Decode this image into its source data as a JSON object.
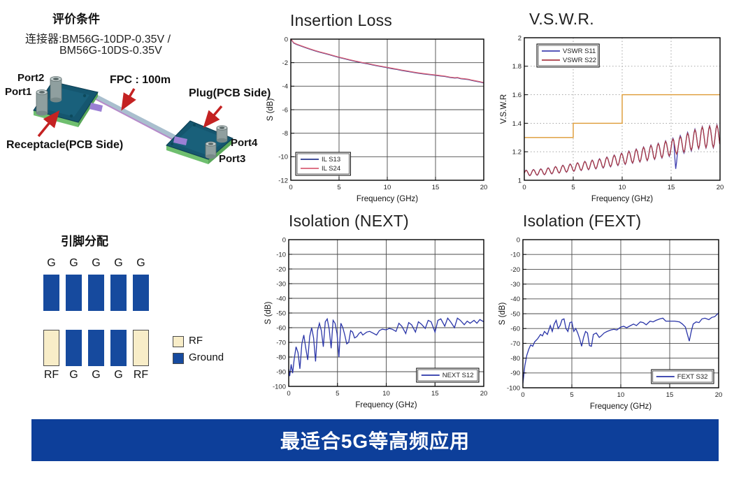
{
  "page": {
    "banner": {
      "text": "最适合5G等高频应用",
      "bg_color": "#0d3f9a",
      "text_color": "#ffffff"
    }
  },
  "evaluation": {
    "title": "评价条件",
    "connector_line1": "连接器:BM56G-10DP-0.35V /",
    "connector_line2": "BM56G-10DS-0.35V"
  },
  "diagram": {
    "labels": {
      "port1": "Port1",
      "port2": "Port2",
      "port3": "Port3",
      "port4": "Port4",
      "fpc": "FPC : 100m",
      "plug": "Plug(PCB Side)",
      "receptacle": "Receptacle(PCB Side)"
    }
  },
  "pin_assignment": {
    "title": "引脚分配",
    "top_row": [
      "G",
      "G",
      "G",
      "G",
      "G"
    ],
    "bottom_row": [
      "RF",
      "G",
      "G",
      "G",
      "RF"
    ],
    "pin_colors": {
      "G": "#164a9e",
      "RF": "#f8edc8"
    },
    "legend": [
      {
        "label": "RF",
        "color": "#f8edc8"
      },
      {
        "label": "Ground",
        "color": "#164a9e"
      }
    ]
  },
  "chart_data": [
    {
      "id": "insertion_loss",
      "type": "line",
      "title": "Insertion Loss",
      "xlabel": "Frequency (GHz)",
      "ylabel": "S (dB)",
      "xlim": [
        0,
        20
      ],
      "ylim": [
        -12,
        0
      ],
      "xticks": [
        0,
        5,
        10,
        15,
        20
      ],
      "yticks": [
        0,
        -2,
        -4,
        -6,
        -8,
        -10,
        -12
      ],
      "grid": "solid",
      "legend": {
        "position": "bottom-left",
        "entries": [
          {
            "label": "IL S13",
            "color": "#26348c"
          },
          {
            "label": "IL S24",
            "color": "#da5f76"
          }
        ]
      },
      "series": [
        {
          "name": "IL S13",
          "color": "#26348c",
          "points": [
            [
              0,
              0
            ],
            [
              0.3,
              -0.33
            ],
            [
              0.6,
              -0.45
            ],
            [
              1,
              -0.57
            ],
            [
              1.5,
              -0.72
            ],
            [
              2,
              -0.86
            ],
            [
              2.5,
              -1.0
            ],
            [
              3,
              -1.11
            ],
            [
              3.5,
              -1.22
            ],
            [
              4,
              -1.33
            ],
            [
              4.5,
              -1.45
            ],
            [
              5,
              -1.56
            ],
            [
              5.5,
              -1.66
            ],
            [
              6,
              -1.76
            ],
            [
              6.5,
              -1.86
            ],
            [
              7,
              -1.95
            ],
            [
              7.5,
              -2.03
            ],
            [
              8,
              -2.11
            ],
            [
              8.5,
              -2.2
            ],
            [
              9,
              -2.28
            ],
            [
              9.5,
              -2.35
            ],
            [
              10,
              -2.43
            ],
            [
              10.5,
              -2.51
            ],
            [
              11,
              -2.58
            ],
            [
              11.5,
              -2.66
            ],
            [
              12,
              -2.73
            ],
            [
              12.5,
              -2.8
            ],
            [
              13,
              -2.87
            ],
            [
              13.5,
              -2.93
            ],
            [
              14,
              -2.98
            ],
            [
              14.5,
              -3.03
            ],
            [
              15,
              -3.08
            ],
            [
              15.5,
              -3.13
            ],
            [
              16,
              -3.18
            ],
            [
              16.5,
              -3.26
            ],
            [
              17,
              -3.31
            ],
            [
              17.3,
              -3.29
            ],
            [
              17.6,
              -3.36
            ],
            [
              18,
              -3.4
            ],
            [
              18.4,
              -3.44
            ],
            [
              18.8,
              -3.52
            ],
            [
              19.2,
              -3.58
            ],
            [
              19.6,
              -3.65
            ],
            [
              20,
              -3.73
            ]
          ]
        },
        {
          "name": "IL S24",
          "color": "#da5f76",
          "same_as": 0,
          "dy": 0.03
        }
      ]
    },
    {
      "id": "vswr",
      "type": "line",
      "title": "V.S.W.R.",
      "xlabel": "Frequency (GHz)",
      "ylabel": "V.S.W.R",
      "xlim": [
        0,
        20
      ],
      "ylim": [
        1,
        2
      ],
      "xticks": [
        0,
        5,
        10,
        15,
        20
      ],
      "yticks": [
        1,
        1.2,
        1.4,
        1.6,
        1.8,
        2
      ],
      "grid": "dotted",
      "legend": {
        "position": "top-left",
        "entries": [
          {
            "label": "VSWR S11",
            "color": "#4040b0"
          },
          {
            "label": "VSWR S22",
            "color": "#a93a45"
          }
        ]
      },
      "reference_line": {
        "name": "spec-limit-step",
        "color": "#dd9933",
        "step_points": [
          [
            0,
            1.3
          ],
          [
            5,
            1.3
          ],
          [
            5,
            1.4
          ],
          [
            10,
            1.4
          ],
          [
            10,
            1.6
          ],
          [
            20,
            1.6
          ]
        ]
      },
      "series": [
        {
          "name": "VSWR S11",
          "color": "#4040b0",
          "osc": {
            "period": 0.75,
            "env_x": [
              0,
              2,
              4,
              6,
              8,
              10,
              12,
              14,
              16,
              18,
              20
            ],
            "env_mid": [
              1.05,
              1.06,
              1.08,
              1.1,
              1.12,
              1.15,
              1.18,
              1.21,
              1.25,
              1.3,
              1.31
            ],
            "env_amp": [
              0.02,
              0.022,
              0.026,
              0.03,
              0.035,
              0.042,
              0.05,
              0.055,
              0.065,
              0.075,
              0.08
            ]
          },
          "notch": [
            15.5,
            1.08
          ]
        },
        {
          "name": "VSWR S22",
          "color": "#a93a45",
          "osc": {
            "period": 0.75,
            "env_x": [
              0,
              2,
              4,
              6,
              8,
              10,
              12,
              14,
              16,
              18,
              20
            ],
            "env_mid": [
              1.05,
              1.06,
              1.08,
              1.1,
              1.12,
              1.15,
              1.18,
              1.21,
              1.25,
              1.3,
              1.31
            ],
            "env_amp": [
              0.019,
              0.021,
              0.025,
              0.029,
              0.033,
              0.04,
              0.048,
              0.053,
              0.058,
              0.072,
              0.077
            ]
          }
        }
      ]
    },
    {
      "id": "isolation_next",
      "type": "line",
      "title": "Isolation (NEXT)",
      "xlabel": "Frequency (GHz)",
      "ylabel": "S (dB)",
      "xlim": [
        0,
        20
      ],
      "ylim": [
        -100,
        0
      ],
      "xticks": [
        0,
        5,
        10,
        15,
        20
      ],
      "yticks": [
        0,
        -10,
        -20,
        -30,
        -40,
        -50,
        -60,
        -70,
        -80,
        -90,
        -100
      ],
      "grid": "solid",
      "legend": {
        "position": "bottom-right",
        "entries": [
          {
            "label": "NEXT S12",
            "color": "#2a35a8"
          }
        ]
      },
      "series": [
        {
          "name": "NEXT S12",
          "color": "#2a35a8",
          "points": [
            [
              0,
              -88
            ],
            [
              0.1,
              -93
            ],
            [
              0.25,
              -85
            ],
            [
              0.4,
              -91
            ],
            [
              0.55,
              -82
            ],
            [
              0.75,
              -73
            ],
            [
              0.95,
              -77
            ],
            [
              1.15,
              -88
            ],
            [
              1.35,
              -71
            ],
            [
              1.55,
              -65
            ],
            [
              1.75,
              -74
            ],
            [
              1.95,
              -82
            ],
            [
              2.15,
              -66
            ],
            [
              2.35,
              -60
            ],
            [
              2.55,
              -67
            ],
            [
              2.75,
              -83
            ],
            [
              2.95,
              -62
            ],
            [
              3.15,
              -57
            ],
            [
              3.35,
              -62
            ],
            [
              3.55,
              -73
            ],
            [
              3.75,
              -56
            ],
            [
              3.95,
              -54
            ],
            [
              4.15,
              -61
            ],
            [
              4.35,
              -74
            ],
            [
              4.55,
              -55
            ],
            [
              4.75,
              -57
            ],
            [
              4.95,
              -64
            ],
            [
              5.15,
              -80
            ],
            [
              5.35,
              -57
            ],
            [
              5.55,
              -60
            ],
            [
              5.75,
              -65
            ],
            [
              5.95,
              -71
            ],
            [
              6.15,
              -70
            ],
            [
              6.35,
              -62
            ],
            [
              6.55,
              -63
            ],
            [
              6.75,
              -67
            ],
            [
              7,
              -66
            ],
            [
              7.2,
              -64
            ],
            [
              7.4,
              -63
            ],
            [
              7.6,
              -65
            ],
            [
              7.8,
              -64
            ],
            [
              8,
              -63
            ],
            [
              8.3,
              -62.5
            ],
            [
              8.6,
              -63.5
            ],
            [
              9,
              -65
            ],
            [
              9.3,
              -62
            ],
            [
              9.6,
              -61
            ],
            [
              10,
              -61.5
            ],
            [
              10.3,
              -60.5
            ],
            [
              10.6,
              -61
            ],
            [
              11,
              -62.5
            ],
            [
              11.3,
              -57
            ],
            [
              11.6,
              -59
            ],
            [
              12,
              -64
            ],
            [
              12.3,
              -56.5
            ],
            [
              12.6,
              -58
            ],
            [
              13,
              -63
            ],
            [
              13.3,
              -56
            ],
            [
              13.6,
              -57.5
            ],
            [
              14,
              -60.5
            ],
            [
              14.3,
              -55
            ],
            [
              14.6,
              -56
            ],
            [
              15,
              -63
            ],
            [
              15.3,
              -55
            ],
            [
              15.6,
              -54
            ],
            [
              16,
              -59
            ],
            [
              16.3,
              -53.5
            ],
            [
              16.6,
              -56
            ],
            [
              17,
              -60
            ],
            [
              17.3,
              -53.5
            ],
            [
              17.6,
              -55
            ],
            [
              18,
              -58
            ],
            [
              18.3,
              -55.5
            ],
            [
              18.6,
              -57
            ],
            [
              19,
              -55
            ],
            [
              19.3,
              -57
            ],
            [
              19.6,
              -54.5
            ],
            [
              20,
              -56
            ]
          ]
        }
      ]
    },
    {
      "id": "isolation_fext",
      "type": "line",
      "title": "Isolation (FEXT)",
      "xlabel": "Frequency (GHz)",
      "ylabel": "S (dB)",
      "xlim": [
        0,
        20
      ],
      "ylim": [
        -100,
        0
      ],
      "xticks": [
        0,
        5,
        10,
        15,
        20
      ],
      "yticks": [
        0,
        -10,
        -20,
        -30,
        -40,
        -50,
        -60,
        -70,
        -80,
        -90,
        -100
      ],
      "grid": "solid",
      "legend": {
        "position": "bottom-right",
        "entries": [
          {
            "label": "FEXT S32",
            "color": "#2a35a8"
          }
        ]
      },
      "series": [
        {
          "name": "FEXT S32",
          "color": "#2a35a8",
          "points": [
            [
              0,
              -97
            ],
            [
              0.2,
              -85
            ],
            [
              0.4,
              -78
            ],
            [
              0.6,
              -74
            ],
            [
              0.8,
              -71
            ],
            [
              1.0,
              -72
            ],
            [
              1.2,
              -69
            ],
            [
              1.5,
              -67
            ],
            [
              1.8,
              -64
            ],
            [
              2.0,
              -65
            ],
            [
              2.2,
              -62
            ],
            [
              2.5,
              -64
            ],
            [
              2.8,
              -58
            ],
            [
              3.0,
              -62
            ],
            [
              3.2,
              -57
            ],
            [
              3.4,
              -54.5
            ],
            [
              3.6,
              -60
            ],
            [
              3.8,
              -58
            ],
            [
              4.0,
              -54
            ],
            [
              4.2,
              -53.5
            ],
            [
              4.4,
              -60
            ],
            [
              4.6,
              -62
            ],
            [
              4.8,
              -56
            ],
            [
              5.0,
              -55.5
            ],
            [
              5.2,
              -62
            ],
            [
              5.4,
              -60
            ],
            [
              5.6,
              -63
            ],
            [
              5.8,
              -67
            ],
            [
              6.0,
              -72
            ],
            [
              6.2,
              -66
            ],
            [
              6.4,
              -62
            ],
            [
              6.6,
              -63
            ],
            [
              6.8,
              -71.5
            ],
            [
              7.0,
              -72
            ],
            [
              7.2,
              -64
            ],
            [
              7.5,
              -63
            ],
            [
              7.8,
              -66
            ],
            [
              8.0,
              -65
            ],
            [
              8.3,
              -63
            ],
            [
              8.6,
              -62
            ],
            [
              9.0,
              -61
            ],
            [
              9.3,
              -60.5
            ],
            [
              9.6,
              -61
            ],
            [
              10.0,
              -59
            ],
            [
              10.3,
              -58.5
            ],
            [
              10.6,
              -59.5
            ],
            [
              11.0,
              -58
            ],
            [
              11.3,
              -57
            ],
            [
              11.6,
              -58
            ],
            [
              12.0,
              -55.5
            ],
            [
              12.3,
              -56
            ],
            [
              12.6,
              -57.5
            ],
            [
              13.0,
              -55
            ],
            [
              13.3,
              -55.5
            ],
            [
              13.6,
              -54.5
            ],
            [
              14.0,
              -53.5
            ],
            [
              14.3,
              -53
            ],
            [
              14.6,
              -55
            ],
            [
              15.0,
              -55
            ],
            [
              15.5,
              -55
            ],
            [
              16.0,
              -55.5
            ],
            [
              16.3,
              -57
            ],
            [
              16.6,
              -59
            ],
            [
              17.0,
              -68.5
            ],
            [
              17.2,
              -62
            ],
            [
              17.4,
              -57
            ],
            [
              17.7,
              -55.5
            ],
            [
              18.0,
              -56
            ],
            [
              18.3,
              -53.5
            ],
            [
              18.6,
              -53
            ],
            [
              19.0,
              -54
            ],
            [
              19.3,
              -52.5
            ],
            [
              19.6,
              -52
            ],
            [
              20.0,
              -49.5
            ]
          ]
        }
      ]
    }
  ]
}
